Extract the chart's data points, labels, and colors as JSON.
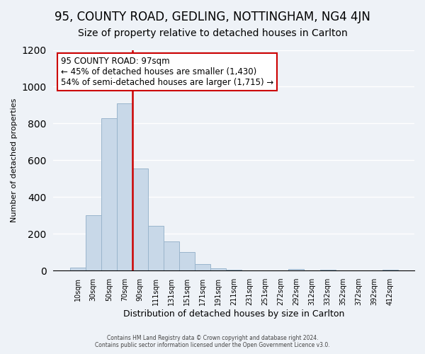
{
  "title": "95, COUNTY ROAD, GEDLING, NOTTINGHAM, NG4 4JN",
  "subtitle": "Size of property relative to detached houses in Carlton",
  "xlabel": "Distribution of detached houses by size in Carlton",
  "ylabel": "Number of detached properties",
  "bar_labels": [
    "10sqm",
    "30sqm",
    "50sqm",
    "70sqm",
    "90sqm",
    "111sqm",
    "131sqm",
    "151sqm",
    "171sqm",
    "191sqm",
    "211sqm",
    "231sqm",
    "251sqm",
    "272sqm",
    "292sqm",
    "312sqm",
    "332sqm",
    "352sqm",
    "372sqm",
    "392sqm",
    "412sqm"
  ],
  "bar_heights": [
    15,
    300,
    830,
    910,
    555,
    245,
    160,
    100,
    35,
    12,
    3,
    0,
    0,
    0,
    10,
    0,
    5,
    0,
    0,
    0,
    3
  ],
  "bar_color": "#c8d8e8",
  "bar_edge_color": "#9ab5cc",
  "vline_color": "#cc0000",
  "annotation_title": "95 COUNTY ROAD: 97sqm",
  "annotation_line1": "← 45% of detached houses are smaller (1,430)",
  "annotation_line2": "54% of semi-detached houses are larger (1,715) →",
  "annotation_box_color": "#ffffff",
  "annotation_box_edge": "#cc0000",
  "ylim": [
    0,
    1200
  ],
  "footer1": "Contains HM Land Registry data © Crown copyright and database right 2024.",
  "footer2": "Contains public sector information licensed under the Open Government Licence v3.0.",
  "bg_color": "#eef2f7",
  "grid_color": "#ffffff",
  "title_fontsize": 12,
  "subtitle_fontsize": 10,
  "annotation_fontsize": 8.5,
  "ylabel_fontsize": 8,
  "xlabel_fontsize": 9,
  "footer_fontsize": 5.5,
  "vline_x_index": 3.5
}
